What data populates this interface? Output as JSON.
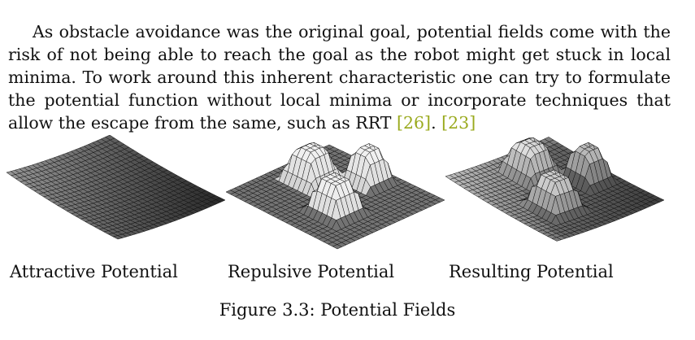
{
  "paragraph": {
    "text_before": "As obstacle avoidance was the original goal, potential fields come with the risk of not being able to reach the goal as the robot might get stuck in local minima. To work around this inherent characteristic one can try to formulate the potential function without local minima or incorporate techniques that allow the escape from the same, such as RRT ",
    "cite1": "[26]",
    "text_mid": ". ",
    "cite2": "[23]"
  },
  "figures": [
    {
      "label": "Attractive Potential"
    },
    {
      "label": "Repulsive Potential"
    },
    {
      "label": "Resulting Potential"
    }
  ],
  "caption": "Figure 3.3: Potential Fields"
}
